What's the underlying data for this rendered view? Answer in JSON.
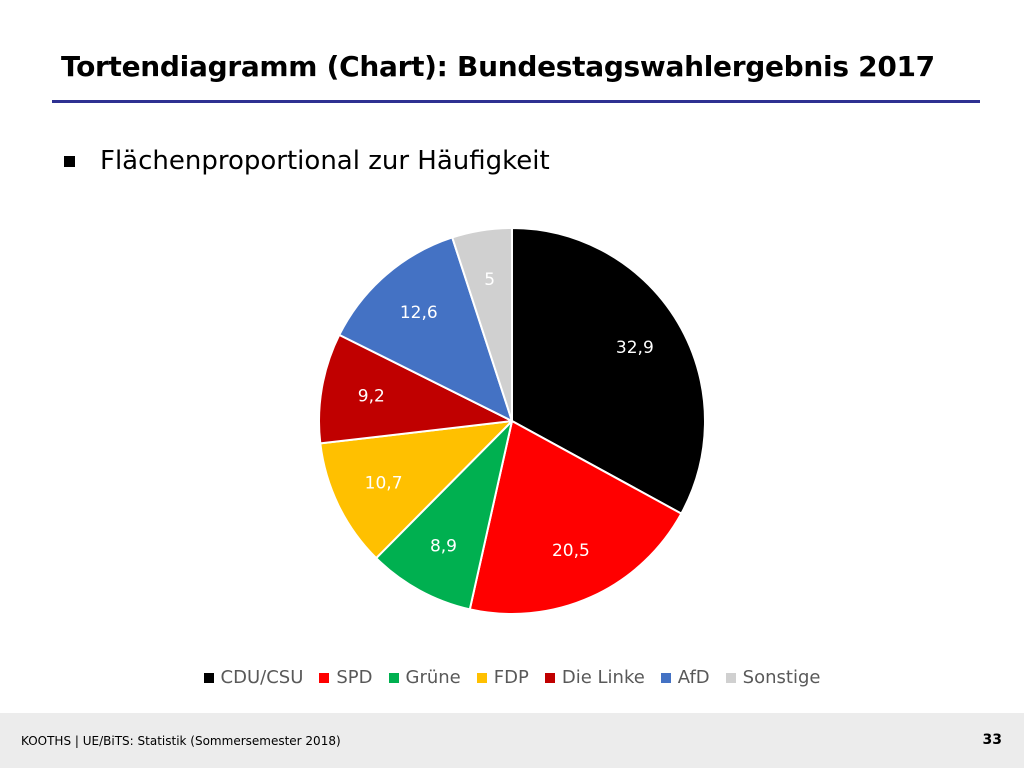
{
  "slide": {
    "title": "Tortendiagramm (Chart): Bundestagswahlergebnis 2017",
    "bullet": "Flächenproportional zur Häufigkeit",
    "accent_color": "#2E3192"
  },
  "chart_data": {
    "type": "pie",
    "title": "",
    "legend_position": "bottom",
    "categories": [
      "CDU/CSU",
      "SPD",
      "Grüne",
      "FDP",
      "Die Linke",
      "AfD",
      "Sonstige"
    ],
    "values": [
      32.9,
      20.5,
      8.9,
      10.7,
      9.2,
      12.6,
      5
    ],
    "value_labels": [
      "32,9",
      "20,5",
      "8,9",
      "10,7",
      "9,2",
      "12,6",
      "5"
    ],
    "colors": [
      "#000000",
      "#FF0000",
      "#00B050",
      "#FFC000",
      "#C00000",
      "#4472C4",
      "#D0D0D0"
    ],
    "label_colors": [
      "#FFFFFF",
      "#FFFFFF",
      "#FFFFFF",
      "#FFFFFF",
      "#FFFFFF",
      "#FFFFFF",
      "#FFFFFF"
    ],
    "start_angle": "12 o'clock",
    "direction": "clockwise"
  },
  "footer": {
    "text": "KOOTHS | UE/BiTS: Statistik (Sommersemester 2018)",
    "page_number": "33"
  }
}
